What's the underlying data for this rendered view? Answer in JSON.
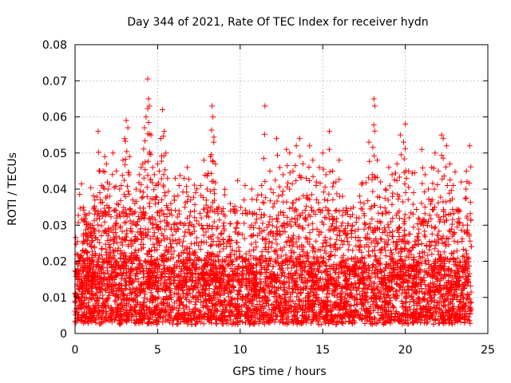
{
  "chart_data": {
    "type": "scatter",
    "title": "Day 344 of 2021, Rate Of TEC Index for receiver hydn",
    "xlabel": "GPS time / hours",
    "ylabel": "ROTI / TECUs",
    "xlim": [
      0,
      25
    ],
    "ylim": [
      0,
      0.08
    ],
    "xticks": [
      0,
      5,
      10,
      15,
      20,
      25
    ],
    "xtick_labels": [
      "0",
      "5",
      "10",
      "15",
      "20",
      "25"
    ],
    "yticks": [
      0,
      0.01,
      0.02,
      0.03,
      0.04,
      0.05,
      0.06,
      0.07,
      0.08
    ],
    "ytick_labels": [
      "0",
      "0.01",
      "0.02",
      "0.03",
      "0.04",
      "0.05",
      "0.06",
      "0.07",
      "0.08"
    ],
    "grid": true,
    "legend": "none",
    "marker": "plus",
    "color": "#ff0000",
    "points": [
      [
        0.1,
        0.022
      ],
      [
        0.3,
        0.021
      ],
      [
        0.5,
        0.027
      ],
      [
        0.6,
        0.033
      ],
      [
        0.8,
        0.029
      ],
      [
        1.0,
        0.028
      ],
      [
        1.2,
        0.037
      ],
      [
        1.4,
        0.056
      ],
      [
        1.5,
        0.039
      ],
      [
        1.6,
        0.041
      ],
      [
        1.7,
        0.045
      ],
      [
        1.8,
        0.049
      ],
      [
        1.9,
        0.047
      ],
      [
        2.0,
        0.04
      ],
      [
        2.1,
        0.038
      ],
      [
        2.3,
        0.05
      ],
      [
        2.4,
        0.034
      ],
      [
        2.5,
        0.045
      ],
      [
        2.7,
        0.04
      ],
      [
        2.8,
        0.041
      ],
      [
        2.9,
        0.048
      ],
      [
        3.0,
        0.054
      ],
      [
        3.1,
        0.059
      ],
      [
        3.2,
        0.057
      ],
      [
        3.3,
        0.049
      ],
      [
        3.5,
        0.037
      ],
      [
        3.7,
        0.04
      ],
      [
        3.9,
        0.044
      ],
      [
        4.0,
        0.046
      ],
      [
        4.1,
        0.047
      ],
      [
        4.2,
        0.057
      ],
      [
        4.3,
        0.06
      ],
      [
        4.4,
        0.0705
      ],
      [
        4.45,
        0.065
      ],
      [
        4.5,
        0.063
      ],
      [
        4.6,
        0.055
      ],
      [
        4.7,
        0.046
      ],
      [
        4.8,
        0.044
      ],
      [
        4.9,
        0.041
      ],
      [
        5.0,
        0.047
      ],
      [
        5.1,
        0.045
      ],
      [
        5.2,
        0.054
      ],
      [
        5.3,
        0.062
      ],
      [
        5.4,
        0.056
      ],
      [
        5.5,
        0.05
      ],
      [
        5.6,
        0.043
      ],
      [
        5.8,
        0.036
      ],
      [
        6.0,
        0.038
      ],
      [
        6.3,
        0.041
      ],
      [
        6.6,
        0.043
      ],
      [
        6.8,
        0.046
      ],
      [
        7.0,
        0.037
      ],
      [
        7.3,
        0.039
      ],
      [
        7.6,
        0.041
      ],
      [
        7.8,
        0.048
      ],
      [
        8.0,
        0.04
      ],
      [
        8.2,
        0.049
      ],
      [
        8.3,
        0.063
      ],
      [
        8.35,
        0.06
      ],
      [
        8.4,
        0.053
      ],
      [
        8.5,
        0.047
      ],
      [
        8.7,
        0.035
      ],
      [
        9.0,
        0.033
      ],
      [
        9.4,
        0.036
      ],
      [
        9.8,
        0.034
      ],
      [
        10.3,
        0.041
      ],
      [
        10.7,
        0.04
      ],
      [
        11.0,
        0.037
      ],
      [
        11.3,
        0.041
      ],
      [
        11.5,
        0.063
      ],
      [
        11.8,
        0.045
      ],
      [
        12.0,
        0.039
      ],
      [
        12.2,
        0.054
      ],
      [
        12.4,
        0.046
      ],
      [
        12.6,
        0.044
      ],
      [
        12.8,
        0.051
      ],
      [
        13.0,
        0.05
      ],
      [
        13.2,
        0.045
      ],
      [
        13.4,
        0.052
      ],
      [
        13.6,
        0.054
      ],
      [
        13.8,
        0.047
      ],
      [
        14.0,
        0.043
      ],
      [
        14.2,
        0.052
      ],
      [
        14.4,
        0.048
      ],
      [
        14.6,
        0.041
      ],
      [
        14.8,
        0.046
      ],
      [
        15.0,
        0.05
      ],
      [
        15.2,
        0.044
      ],
      [
        15.4,
        0.056
      ],
      [
        15.6,
        0.045
      ],
      [
        15.8,
        0.042
      ],
      [
        16.0,
        0.048
      ],
      [
        16.2,
        0.038
      ],
      [
        16.5,
        0.033
      ],
      [
        16.8,
        0.03
      ],
      [
        17.2,
        0.032
      ],
      [
        17.5,
        0.036
      ],
      [
        17.8,
        0.053
      ],
      [
        18.0,
        0.044
      ],
      [
        18.1,
        0.065
      ],
      [
        18.15,
        0.063
      ],
      [
        18.3,
        0.048
      ],
      [
        18.5,
        0.042
      ],
      [
        18.8,
        0.04
      ],
      [
        19.0,
        0.046
      ],
      [
        19.2,
        0.044
      ],
      [
        19.5,
        0.047
      ],
      [
        19.7,
        0.055
      ],
      [
        19.9,
        0.053
      ],
      [
        20.0,
        0.058
      ],
      [
        20.2,
        0.045
      ],
      [
        20.5,
        0.039
      ],
      [
        20.8,
        0.032
      ],
      [
        21.0,
        0.051
      ],
      [
        21.2,
        0.044
      ],
      [
        21.4,
        0.04
      ],
      [
        21.6,
        0.046
      ],
      [
        21.8,
        0.05
      ],
      [
        22.0,
        0.045
      ],
      [
        22.2,
        0.055
      ],
      [
        22.3,
        0.054
      ],
      [
        22.5,
        0.052
      ],
      [
        22.7,
        0.047
      ],
      [
        22.9,
        0.041
      ],
      [
        23.2,
        0.034
      ],
      [
        23.5,
        0.03
      ],
      [
        23.7,
        0.045
      ],
      [
        23.9,
        0.052
      ],
      [
        0.4,
        0.013
      ],
      [
        1.1,
        0.016
      ],
      [
        2.2,
        0.019
      ],
      [
        3.4,
        0.014
      ],
      [
        4.5,
        0.018
      ],
      [
        5.5,
        0.012
      ],
      [
        6.7,
        0.015
      ],
      [
        7.7,
        0.017
      ],
      [
        8.8,
        0.013
      ],
      [
        9.9,
        0.011
      ],
      [
        10.9,
        0.014
      ],
      [
        12.1,
        0.016
      ],
      [
        13.3,
        0.013
      ],
      [
        14.3,
        0.018
      ],
      [
        15.3,
        0.012
      ],
      [
        16.4,
        0.015
      ],
      [
        17.4,
        0.017
      ],
      [
        18.6,
        0.014
      ],
      [
        19.6,
        0.016
      ],
      [
        20.6,
        0.013
      ],
      [
        21.7,
        0.018
      ],
      [
        22.8,
        0.012
      ],
      [
        23.8,
        0.015
      ]
    ],
    "dense_band": {
      "description": "continuous cloud of points between ROTI 0.003 and 0.02 across 0-24 h",
      "x_range": [
        0,
        24
      ],
      "y_low": 0.003,
      "y_typical": 0.012,
      "y_upper": 0.035
    }
  }
}
